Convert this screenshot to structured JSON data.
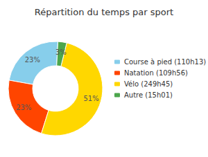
{
  "chart_data": {
    "type": "pie",
    "title": "Répartition du temps par sport",
    "categories": [
      "Course à pied (110h13)",
      "Natation (109h56)",
      "Vélo (249h45)",
      "Autre (15h01)"
    ],
    "values": [
      23,
      23,
      51,
      3
    ],
    "value_labels": [
      "23%",
      "23%",
      "51%",
      "3%"
    ],
    "colors": [
      "#87CEEB",
      "#FF4500",
      "#FFD700",
      "#4CA64C"
    ],
    "data_labels": true,
    "legend": "right"
  }
}
